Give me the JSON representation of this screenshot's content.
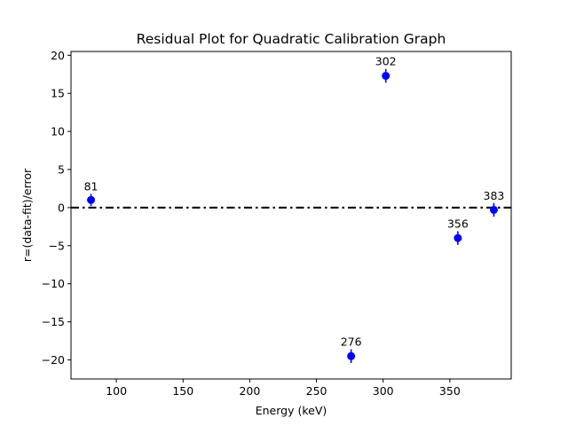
{
  "chart_data": {
    "type": "scatter",
    "title": "Residual Plot for Quadratic Calibration Graph",
    "xlabel": "Energy (keV)",
    "ylabel": "r=(data-fit)/error",
    "xlim": [
      66,
      396
    ],
    "ylim": [
      -22.5,
      20.5
    ],
    "xticks": [
      100,
      150,
      200,
      250,
      300,
      350
    ],
    "xtick_labels": [
      "100",
      "150",
      "200",
      "250",
      "300",
      "350"
    ],
    "yticks": [
      20,
      15,
      10,
      5,
      0,
      -5,
      -10,
      -15,
      -20
    ],
    "ytick_labels": [
      "20",
      "15",
      "10",
      "5",
      "0",
      "−5",
      "−10",
      "−15",
      "−20"
    ],
    "grid": false,
    "reference_line": {
      "y": 0,
      "style": "dash-dot",
      "color": "#000000"
    },
    "marker_color": "#0000ff",
    "points": [
      {
        "x": 81,
        "y": 1.0,
        "err": 0.8,
        "label": "81"
      },
      {
        "x": 276,
        "y": -19.5,
        "err": 0.9,
        "label": "276"
      },
      {
        "x": 302,
        "y": 17.3,
        "err": 0.9,
        "label": "302"
      },
      {
        "x": 356,
        "y": -4.0,
        "err": 0.9,
        "label": "356"
      },
      {
        "x": 383,
        "y": -0.3,
        "err": 0.9,
        "label": "383"
      }
    ]
  }
}
